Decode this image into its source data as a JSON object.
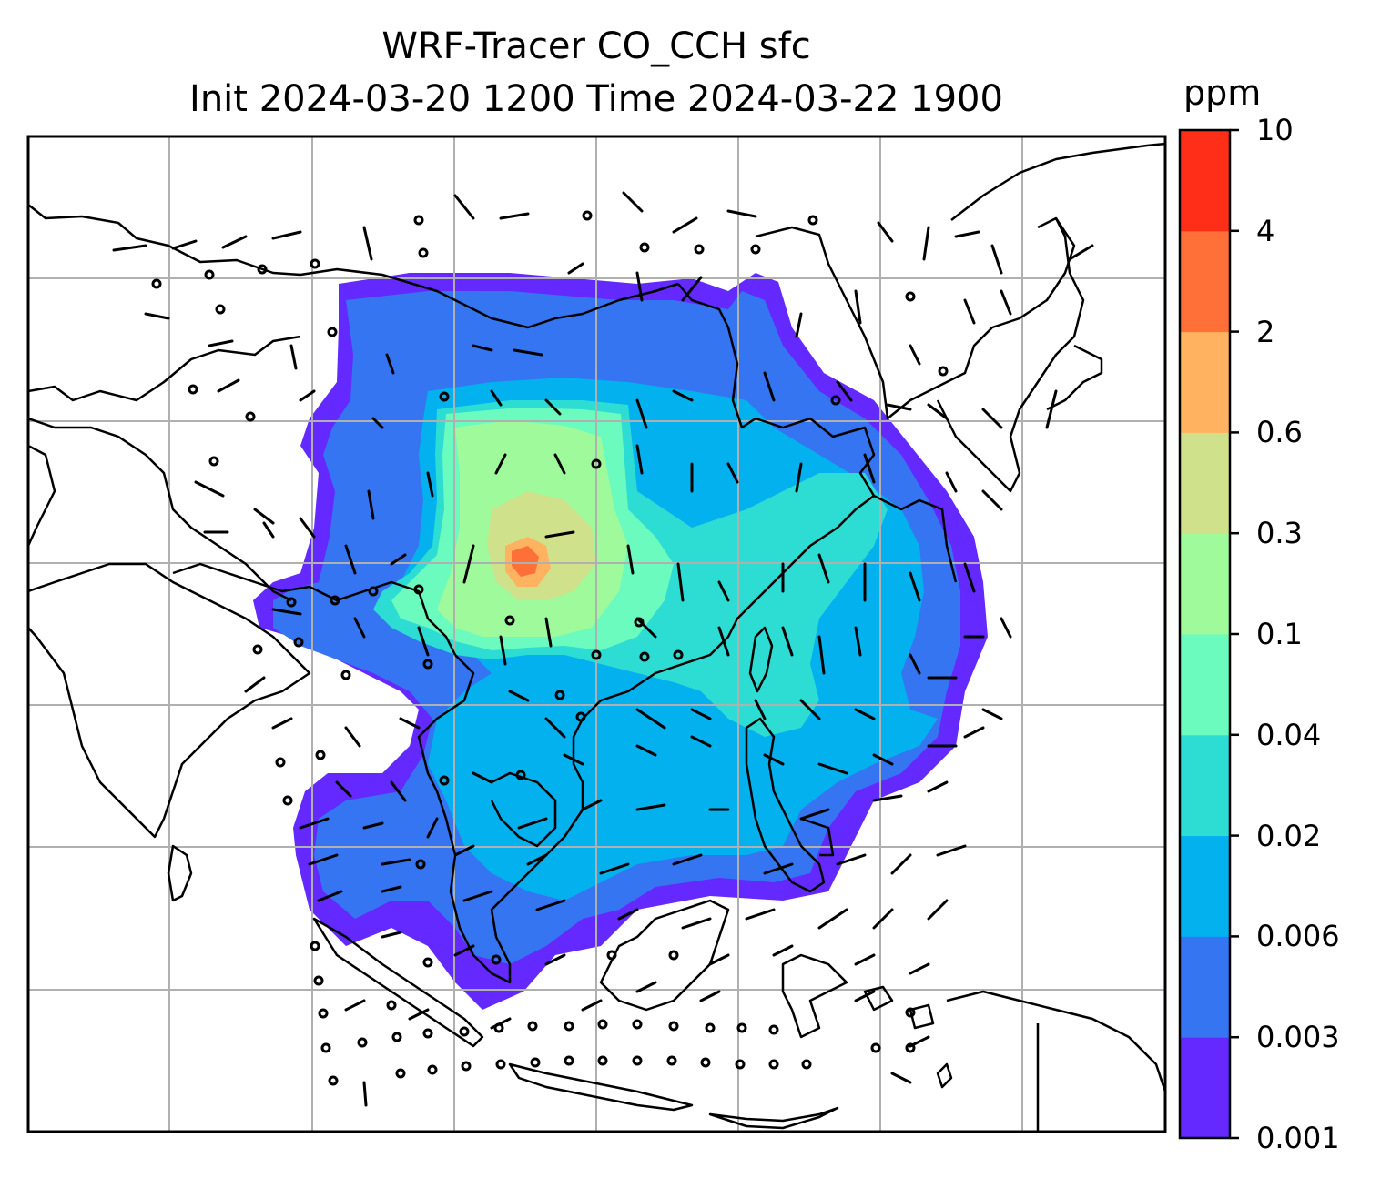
{
  "title": {
    "line1": "WRF-Tracer CO_CCH sfc",
    "line2": "Init 2024-03-20 1200 Time 2024-03-22 1900"
  },
  "colorbar": {
    "units": "ppm",
    "levels": [
      "0.001",
      "0.003",
      "0.006",
      "0.02",
      "0.04",
      "0.1",
      "0.3",
      "0.6",
      "2",
      "4",
      "10"
    ],
    "colors": [
      "#6329ff",
      "#3575f2",
      "#02b1ee",
      "#2ddcd3",
      "#6cfbbf",
      "#9efa9a",
      "#cfe18a",
      "#ffb25f",
      "#ff7038",
      "#ff2e18"
    ]
  },
  "map": {
    "region": "East and Southeast Asia",
    "gridlines": true,
    "overlay": "wind barbs",
    "colors": {
      "coastline": "#000000",
      "gridline": "#b0b0b0",
      "frame": "#000000"
    }
  }
}
